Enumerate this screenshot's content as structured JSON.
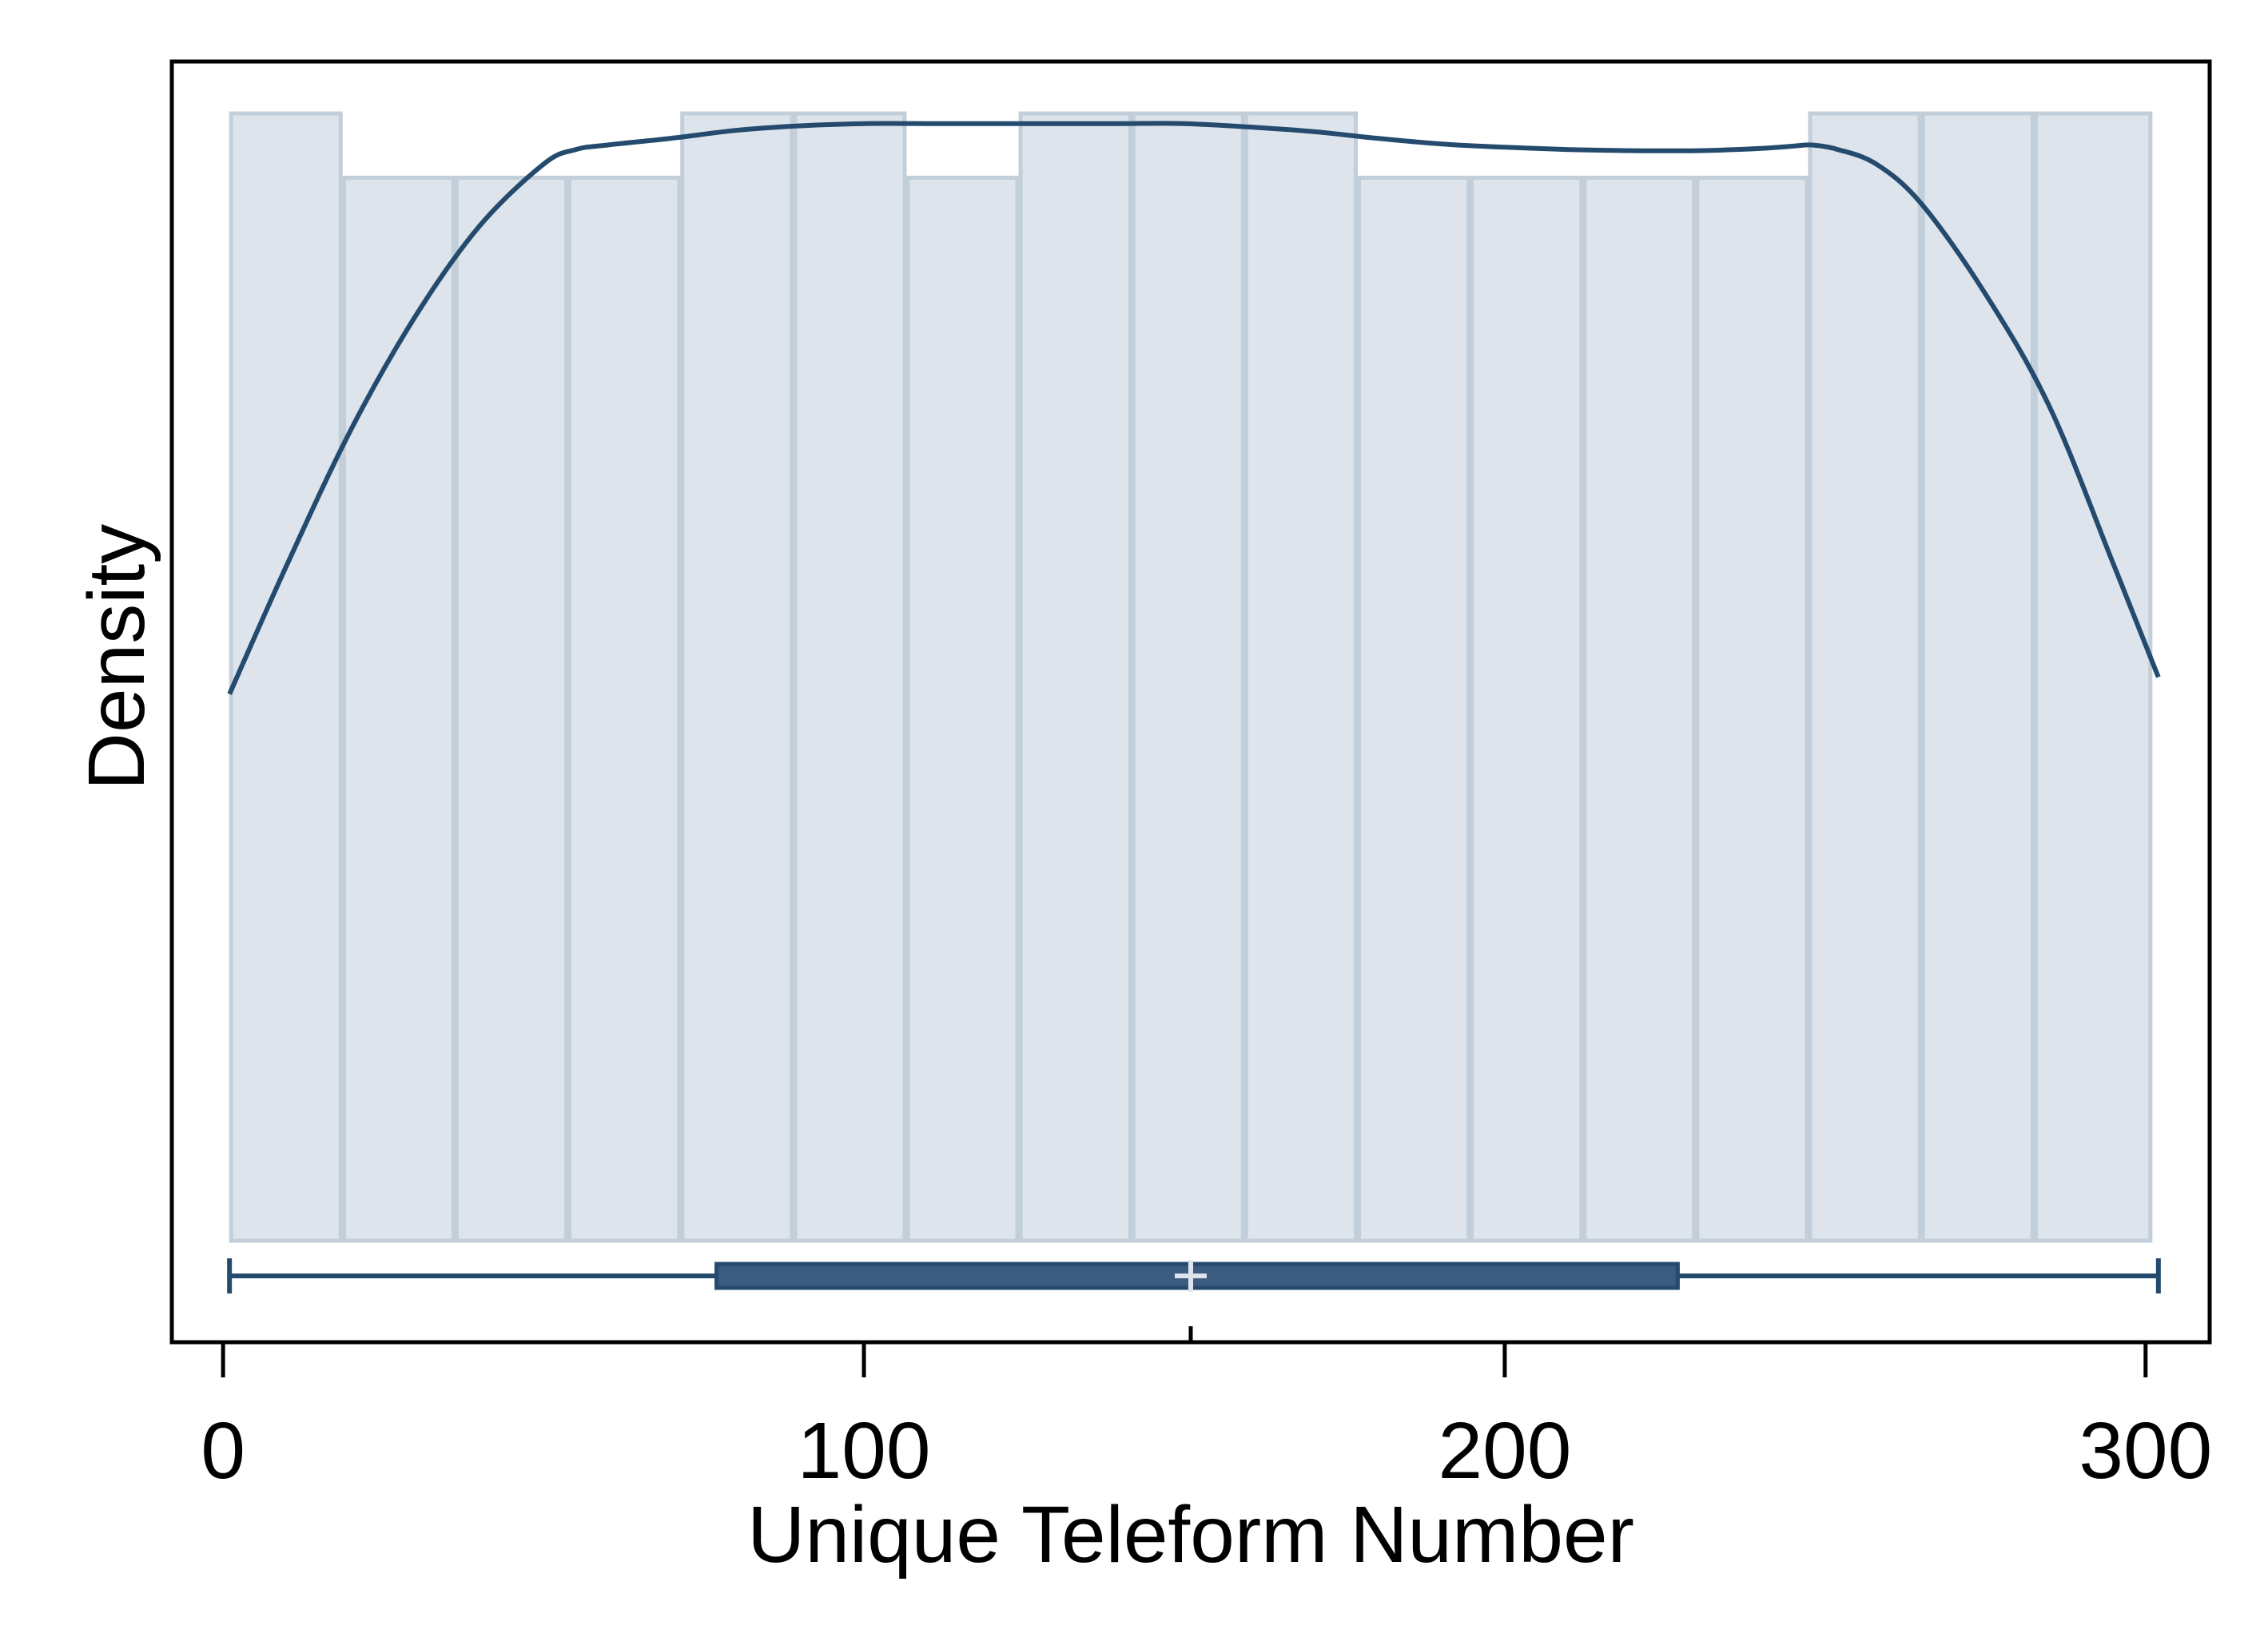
{
  "chart_data": {
    "type": "bar",
    "subtype": "histogram with kernel density overlay and box plot",
    "title": "",
    "xlabel": "Unique Teleform Number",
    "ylabel": "Density",
    "xlim": [
      -8,
      310
    ],
    "x_ticks": [
      0,
      100,
      200,
      300
    ],
    "x_tick_labels": [
      "0",
      "100",
      "200",
      "300"
    ],
    "y_ticks": [],
    "ylim": [
      0,
      1.05
    ],
    "grid": false,
    "legend": "none",
    "histogram": {
      "bin_edges": [
        1,
        18.6,
        36.2,
        53.8,
        71.4,
        89,
        106.6,
        124.2,
        141.8,
        159.4,
        177,
        194.6,
        212.2,
        229.8,
        247.4,
        265,
        282.6,
        301
      ],
      "relative_heights": [
        1.0,
        0.943,
        0.943,
        0.943,
        1.0,
        1.0,
        0.943,
        1.0,
        1.0,
        1.0,
        0.943,
        0.943,
        0.943,
        0.943,
        1.0,
        1.0,
        1.0
      ]
    },
    "density_curve": {
      "x": [
        1,
        10,
        20,
        30,
        40,
        50,
        55,
        60,
        70,
        80,
        90,
        100,
        110,
        120,
        130,
        140,
        150,
        160,
        170,
        180,
        190,
        200,
        210,
        220,
        230,
        240,
        245,
        248,
        252,
        258,
        265,
        275,
        285,
        295,
        302
      ],
      "y": [
        0.485,
        0.6,
        0.72,
        0.82,
        0.9,
        0.955,
        0.968,
        0.972,
        0.978,
        0.985,
        0.989,
        0.991,
        0.991,
        0.991,
        0.991,
        0.991,
        0.991,
        0.988,
        0.984,
        0.978,
        0.973,
        0.97,
        0.968,
        0.967,
        0.967,
        0.969,
        0.971,
        0.972,
        0.968,
        0.955,
        0.92,
        0.84,
        0.74,
        0.6,
        0.5
      ]
    },
    "box_plot": {
      "min": 1,
      "q1": 77,
      "median": 151,
      "mean": 151,
      "q3": 227,
      "max": 302
    },
    "colors": {
      "bar_fill": "#dde4ec",
      "bar_edge": "#c2ced9",
      "curve": "#244a6e",
      "box": "#3b5c80",
      "frame": "#000000"
    }
  }
}
